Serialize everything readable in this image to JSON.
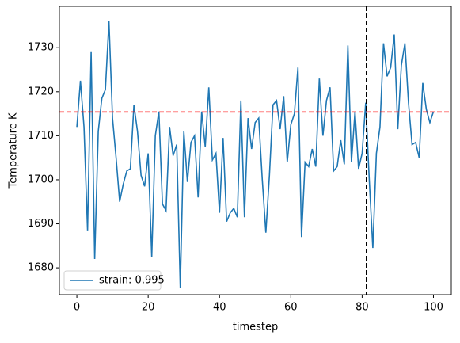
{
  "chart_data": {
    "type": "line",
    "x_label": "timestep",
    "y_label": "Temperature K",
    "x": [
      0,
      1,
      2,
      3,
      4,
      5,
      6,
      7,
      8,
      9,
      10,
      11,
      12,
      13,
      14,
      15,
      16,
      17,
      18,
      19,
      20,
      21,
      22,
      23,
      24,
      25,
      26,
      27,
      28,
      29,
      30,
      31,
      32,
      33,
      34,
      35,
      36,
      37,
      38,
      39,
      40,
      41,
      42,
      43,
      44,
      45,
      46,
      47,
      48,
      49,
      50,
      51,
      52,
      53,
      54,
      55,
      56,
      57,
      58,
      59,
      60,
      61,
      62,
      63,
      64,
      65,
      66,
      67,
      68,
      69,
      70,
      71,
      72,
      73,
      74,
      75,
      76,
      77,
      78,
      79,
      80,
      81,
      82,
      83,
      84,
      85,
      86,
      87,
      88,
      89,
      90,
      91,
      92,
      93,
      94,
      95,
      96,
      97,
      98,
      99,
      100
    ],
    "series": [
      {
        "name": "strain: 0.995",
        "color": "#1f77b4",
        "values": [
          1712,
          1722.5,
          1712,
          1688.5,
          1729,
          1682,
          1711,
          1718.5,
          1720.5,
          1736,
          1714,
          1705,
          1695,
          1699,
          1702,
          1702.5,
          1717,
          1711,
          1701,
          1698.5,
          1706,
          1682.5,
          1710,
          1715.5,
          1694.5,
          1693,
          1712,
          1705.5,
          1708,
          1675.5,
          1711,
          1699.5,
          1708.5,
          1710,
          1696,
          1715.5,
          1707.5,
          1721,
          1704.5,
          1706,
          1692.5,
          1709.5,
          1690.5,
          1692.5,
          1693.5,
          1691.5,
          1718,
          1691.5,
          1714,
          1707,
          1713,
          1714,
          1700,
          1688,
          1701,
          1717,
          1718,
          1711.5,
          1719,
          1704,
          1712.5,
          1715,
          1725.5,
          1687,
          1704,
          1703,
          1707,
          1703,
          1723,
          1710,
          1718,
          1721,
          1702,
          1703,
          1709,
          1703.5,
          1730.5,
          1704,
          1715.5,
          1702.5,
          1706,
          1717.5,
          1700,
          1684.5,
          1706,
          1712,
          1731,
          1723.5,
          1725.5,
          1733,
          1711.5,
          1726,
          1731,
          1717.5,
          1708,
          1708.5,
          1705,
          1722,
          1716,
          1713,
          1715.5
        ]
      }
    ],
    "xlim": [
      -4.9,
      105
    ],
    "ylim": [
      1673.9,
      1739.4
    ],
    "xticks": [
      0,
      20,
      40,
      60,
      80,
      100
    ],
    "yticks": [
      1680,
      1690,
      1700,
      1710,
      1720,
      1730
    ],
    "hline": {
      "value": 1715.4,
      "color": "#ff0000"
    },
    "vline": {
      "value": 81.2,
      "color": "#000000"
    },
    "legend": "lower left",
    "grid": false
  }
}
